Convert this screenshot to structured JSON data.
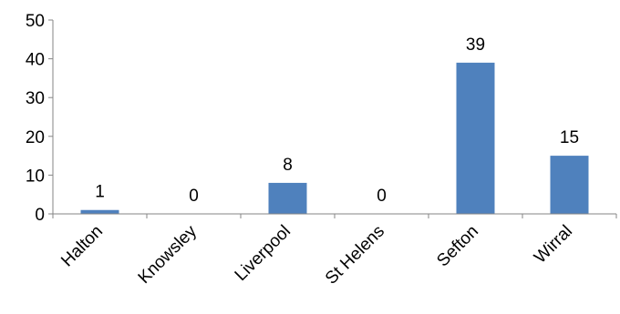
{
  "chart_data": {
    "type": "bar",
    "categories": [
      "Halton",
      "Knowsley",
      "Liverpool",
      "St Helens",
      "Sefton",
      "Wirral"
    ],
    "values": [
      1,
      0,
      8,
      0,
      39,
      15
    ],
    "data_labels": [
      "1",
      "0",
      "8",
      "0",
      "39",
      "15"
    ],
    "yticks": [
      "0",
      "10",
      "20",
      "30",
      "40",
      "50"
    ],
    "ylim": [
      0,
      50
    ],
    "bar_color": "#4f81bd",
    "axis_color": "#868686",
    "grid": false,
    "legend": "none"
  }
}
